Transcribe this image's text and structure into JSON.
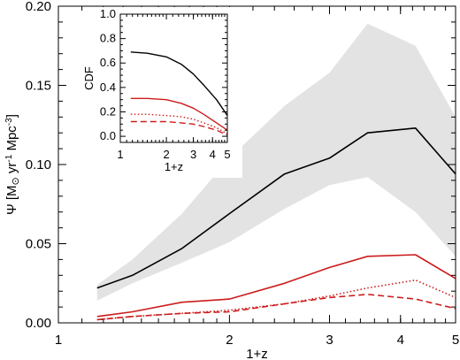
{
  "chart_data": [
    {
      "type": "line",
      "title": "",
      "xlabel": "1+z",
      "ylabel": {
        "prefix": "Ψ [M",
        "sun": "⊙",
        "mid": " yr",
        "sup1": "-1",
        "mid2": " Mpc",
        "sup2": "-3",
        "suffix": "]"
      },
      "xscale": "log",
      "xlim": [
        1,
        5
      ],
      "ylim": [
        0,
        0.2
      ],
      "xticks": [
        1,
        2,
        3,
        4,
        5
      ],
      "xtick_labels": [
        "1",
        "2",
        "3",
        "4",
        "5"
      ],
      "yticks": [
        0,
        0.05,
        0.1,
        0.15,
        0.2
      ],
      "ytick_labels": [
        "0.00",
        "0.05",
        "0.10",
        "0.15",
        "0.20"
      ],
      "band": {
        "color": "#e3e3e3",
        "x": [
          1.17,
          1.35,
          1.65,
          2.0,
          2.5,
          3.0,
          3.5,
          4.25,
          5.0
        ],
        "upper": [
          0.024,
          0.04,
          0.069,
          0.104,
          0.137,
          0.158,
          0.189,
          0.175,
          0.13
        ],
        "lower": [
          0.014,
          0.025,
          0.038,
          0.051,
          0.072,
          0.087,
          0.092,
          0.07,
          0.042
        ]
      },
      "series": [
        {
          "style": "solid",
          "color": "#000000",
          "x": [
            1.17,
            1.35,
            1.65,
            2.0,
            2.5,
            3.0,
            3.5,
            4.25,
            5.0
          ],
          "values": [
            0.022,
            0.03,
            0.047,
            0.069,
            0.094,
            0.104,
            0.12,
            0.123,
            0.094
          ]
        },
        {
          "style": "solid",
          "color": "#cc1c1c",
          "x": [
            1.17,
            1.35,
            1.65,
            2.0,
            2.5,
            3.0,
            3.5,
            4.25,
            5.0
          ],
          "values": [
            0.004,
            0.007,
            0.013,
            0.015,
            0.025,
            0.035,
            0.042,
            0.043,
            0.028
          ]
        },
        {
          "style": "dotted",
          "color": "#cc1c1c",
          "x": [
            1.17,
            1.35,
            1.65,
            2.0,
            2.5,
            3.0,
            3.5,
            4.25,
            5.0
          ],
          "values": [
            0.002,
            0.004,
            0.006,
            0.008,
            0.012,
            0.017,
            0.022,
            0.027,
            0.016
          ]
        },
        {
          "style": "dashed",
          "color": "#cc1c1c",
          "x": [
            1.17,
            1.35,
            1.65,
            2.0,
            2.5,
            3.0,
            3.5,
            4.25,
            5.0
          ],
          "values": [
            0.002,
            0.004,
            0.006,
            0.007,
            0.012,
            0.016,
            0.018,
            0.015,
            0.009
          ]
        }
      ]
    },
    {
      "type": "line",
      "title": "",
      "xlabel": "1+z",
      "ylabel": "CDF",
      "xscale": "log",
      "xlim": [
        1,
        5
      ],
      "ylim": [
        -0.05,
        1.0
      ],
      "xticks": [
        1,
        2,
        3,
        4,
        5
      ],
      "xtick_labels": [
        "1",
        "2",
        "3",
        "4",
        "5"
      ],
      "yticks": [
        0,
        0.2,
        0.4,
        0.6,
        0.8,
        1.0
      ],
      "ytick_labels": [
        "0.0",
        "0.2",
        "0.4",
        "0.6",
        "0.8",
        "1.0"
      ],
      "series": [
        {
          "style": "solid",
          "color": "#000000",
          "x": [
            1.17,
            1.5,
            2.0,
            2.5,
            3.0,
            3.5,
            4.25,
            5.0
          ],
          "values": [
            0.69,
            0.68,
            0.65,
            0.59,
            0.51,
            0.42,
            0.3,
            0.17
          ]
        },
        {
          "style": "solid",
          "color": "#cc1c1c",
          "x": [
            1.17,
            1.5,
            2.0,
            2.5,
            3.0,
            3.5,
            4.25,
            5.0
          ],
          "values": [
            0.31,
            0.31,
            0.3,
            0.27,
            0.23,
            0.18,
            0.11,
            0.05
          ]
        },
        {
          "style": "dotted",
          "color": "#cc1c1c",
          "x": [
            1.17,
            1.5,
            2.0,
            2.5,
            3.0,
            3.5,
            4.25,
            5.0
          ],
          "values": [
            0.18,
            0.18,
            0.17,
            0.16,
            0.14,
            0.11,
            0.07,
            0.02
          ]
        },
        {
          "style": "dashed",
          "color": "#cc1c1c",
          "x": [
            1.17,
            1.5,
            2.0,
            2.5,
            3.0,
            3.5,
            4.25,
            5.0
          ],
          "values": [
            0.12,
            0.12,
            0.12,
            0.11,
            0.1,
            0.08,
            0.05,
            0.01
          ]
        }
      ]
    }
  ]
}
